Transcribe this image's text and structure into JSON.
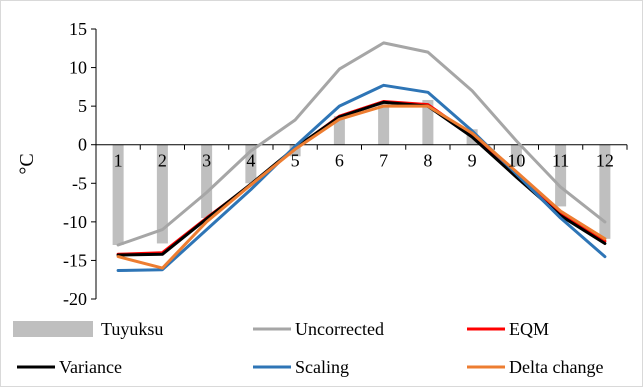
{
  "chart_data": {
    "type": "bar+line",
    "title": "",
    "xlabel": "",
    "ylabel": "°C",
    "ylim": [
      -20,
      15
    ],
    "ytick_step": 5,
    "grid": false,
    "legend_position": "bottom",
    "categories": [
      "1",
      "2",
      "3",
      "4",
      "5",
      "6",
      "7",
      "8",
      "9",
      "10",
      "11",
      "12"
    ],
    "series": [
      {
        "name": "Tuyuksu",
        "kind": "bar",
        "color": "#bfbfbf",
        "values": [
          -13.0,
          -12.8,
          -9.5,
          -5.0,
          -1.5,
          3.7,
          5.5,
          5.8,
          2.0,
          -2.8,
          -8.0,
          -12.2
        ]
      },
      {
        "name": "Uncorrected",
        "kind": "line",
        "color": "#a6a6a6",
        "values": [
          -13.0,
          -11.0,
          -6.2,
          -0.8,
          3.2,
          9.8,
          13.2,
          12.0,
          7.0,
          0.5,
          -5.5,
          -10.0
        ]
      },
      {
        "name": "EQM",
        "kind": "line",
        "color": "#ff0000",
        "values": [
          -14.2,
          -14.0,
          -9.5,
          -5.2,
          -0.5,
          3.7,
          5.6,
          5.2,
          1.2,
          -4.0,
          -9.0,
          -12.5
        ]
      },
      {
        "name": "Variance",
        "kind": "line",
        "color": "#000000",
        "values": [
          -14.3,
          -14.2,
          -9.6,
          -5.1,
          -0.4,
          3.6,
          5.5,
          5.0,
          1.0,
          -4.2,
          -9.2,
          -12.8
        ]
      },
      {
        "name": "Scaling",
        "kind": "line",
        "color": "#2e75b6",
        "values": [
          -16.3,
          -16.2,
          -11.0,
          -5.8,
          -0.2,
          5.0,
          7.7,
          6.8,
          1.8,
          -3.8,
          -9.5,
          -14.5
        ]
      },
      {
        "name": "Delta change",
        "kind": "line",
        "color": "#ed7d31",
        "values": [
          -14.5,
          -16.0,
          -10.0,
          -5.2,
          -0.6,
          3.3,
          5.0,
          5.0,
          1.5,
          -3.5,
          -8.6,
          -12.2
        ]
      }
    ]
  }
}
